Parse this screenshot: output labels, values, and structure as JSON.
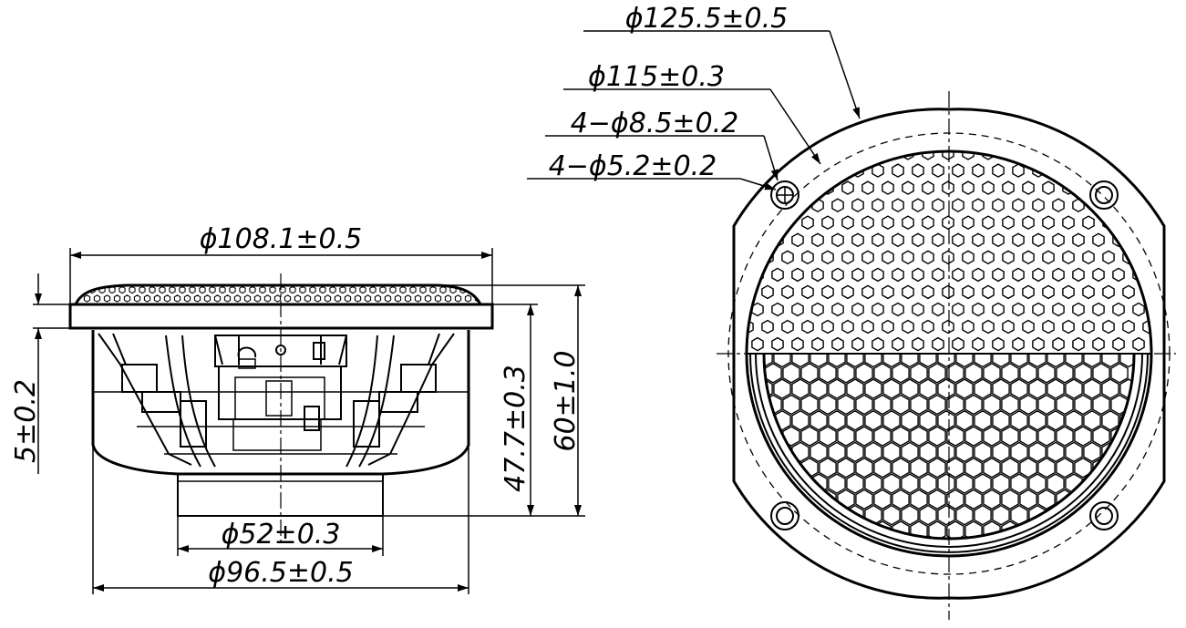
{
  "dimensions": {
    "d125": "ϕ125.5±0.5",
    "d115": "ϕ115±0.3",
    "holes_85": "4−ϕ8.5±0.2",
    "holes_52": "4−ϕ5.2±0.2",
    "d108": "ϕ108.1±0.5",
    "d52": "ϕ52±0.3",
    "d965": "ϕ96.5±0.5",
    "h5": "5±0.2",
    "h477": "47.7±0.3",
    "h60": "60±1.0"
  },
  "colors": {
    "line": "#000000",
    "background": "#ffffff"
  }
}
